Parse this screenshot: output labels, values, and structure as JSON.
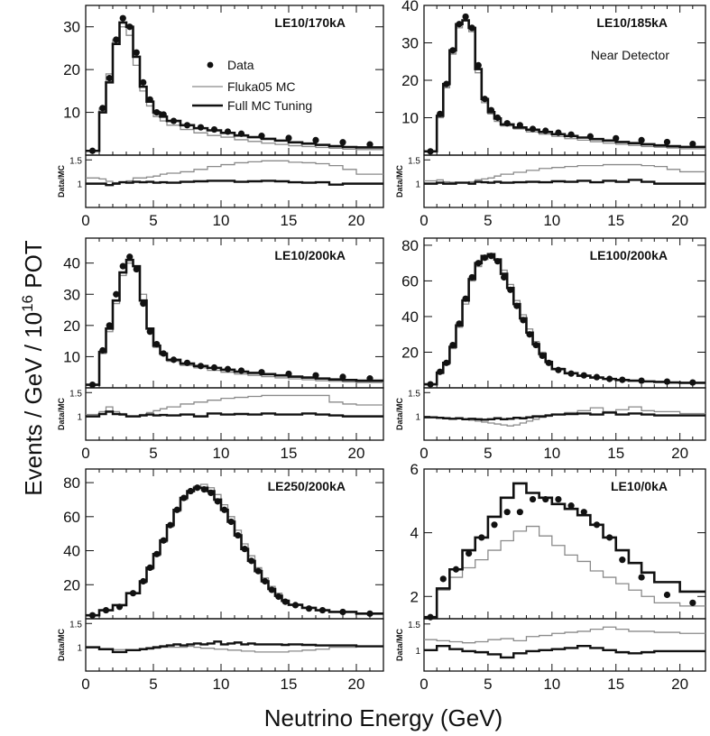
{
  "figure": {
    "y_axis_title": "Events / GeV / 10",
    "y_axis_exponent": "16",
    "y_axis_suffix": " POT",
    "x_axis_title": "Neutrino Energy (GeV)",
    "ratio_axis_label": "Data/MC"
  },
  "legend": {
    "data_label": "Data",
    "fluka_label": "Fluka05 MC",
    "tuned_label": "Full MC Tuning"
  },
  "colors": {
    "data": "#111111",
    "fluka": "#8a8a8a",
    "tuned": "#111111"
  },
  "chart_data": [
    {
      "type": "line",
      "panel": "LE10/170kA",
      "note": "",
      "xlim": [
        0,
        22
      ],
      "ylim": [
        0,
        35
      ],
      "yticks": [
        10,
        20,
        30
      ],
      "ratio_ylim": [
        0.5,
        1.6
      ],
      "ratio_yticks": [
        1,
        1.5
      ],
      "xticks": [
        0,
        5,
        10,
        15,
        20
      ],
      "bin_edges": [
        0,
        1,
        1.5,
        2,
        2.5,
        3,
        3.5,
        4,
        4.5,
        5,
        5.5,
        6,
        7,
        8,
        9,
        10,
        11,
        12,
        13,
        14,
        15,
        16,
        17,
        18,
        19,
        20,
        22
      ],
      "data": {
        "x": [
          0.5,
          1.25,
          1.75,
          2.25,
          2.75,
          3.25,
          3.75,
          4.25,
          4.75,
          5.25,
          5.75,
          6.5,
          7.5,
          8.5,
          9.5,
          10.5,
          11.5,
          13,
          15,
          17,
          19,
          21
        ],
        "y": [
          1,
          11,
          18,
          27,
          32,
          30,
          24,
          17,
          13,
          10,
          9.5,
          8,
          7,
          6.5,
          6,
          5.5,
          5,
          4.5,
          4,
          3.5,
          3,
          2.5
        ]
      },
      "fluka": [
        1,
        11,
        19,
        27,
        30,
        28,
        21,
        15,
        11.5,
        9,
        8,
        7,
        6,
        5.2,
        4.6,
        4.2,
        3.6,
        3.2,
        2.8,
        2.5,
        2.2,
        2,
        1.8,
        1.6,
        1.4,
        1.3
      ],
      "tuned": [
        1,
        10,
        17,
        26,
        31,
        30,
        23,
        16,
        12.5,
        10,
        9,
        8,
        7,
        6.3,
        5.8,
        5.2,
        4.6,
        4.2,
        3.8,
        3.4,
        3,
        2.7,
        2.4,
        2.1,
        1.9,
        1.8
      ],
      "ratio_fluka": [
        1.12,
        1.1,
        1.05,
        1.02,
        1.04,
        1.06,
        1.12,
        1.12,
        1.14,
        1.16,
        1.2,
        1.22,
        1.25,
        1.3,
        1.36,
        1.4,
        1.44,
        1.46,
        1.48,
        1.48,
        1.45,
        1.44,
        1.42,
        1.38,
        1.3,
        1.2
      ],
      "ratio_tuned": [
        1,
        1.0,
        0.97,
        1.0,
        1.03,
        1.02,
        1.04,
        1.03,
        1.04,
        1.02,
        1.03,
        1.02,
        1.04,
        1.05,
        1.06,
        1.06,
        1.04,
        1.05,
        1.06,
        1.05,
        1.03,
        1.02,
        1.03,
        0.98,
        1.0,
        1.0
      ]
    },
    {
      "type": "line",
      "panel": "LE10/185kA",
      "note": "Near Detector",
      "xlim": [
        0,
        22
      ],
      "ylim": [
        0,
        40
      ],
      "yticks": [
        10,
        20,
        30,
        40
      ],
      "ratio_ylim": [
        0.5,
        1.6
      ],
      "ratio_yticks": [
        1,
        1.5
      ],
      "xticks": [
        0,
        5,
        10,
        15,
        20
      ],
      "bin_edges": [
        0,
        1,
        1.5,
        2,
        2.5,
        3,
        3.5,
        4,
        4.5,
        5,
        5.5,
        6,
        7,
        8,
        9,
        10,
        11,
        12,
        13,
        14,
        15,
        16,
        17,
        18,
        19,
        20,
        22
      ],
      "data": {
        "x": [
          0.5,
          1.25,
          1.75,
          2.25,
          2.75,
          3.25,
          3.75,
          4.25,
          4.75,
          5.25,
          5.75,
          6.5,
          7.5,
          8.5,
          9.5,
          10.5,
          11.5,
          13,
          15,
          17,
          19,
          21
        ],
        "y": [
          1,
          11,
          19,
          28,
          35,
          37,
          34,
          24,
          15,
          12,
          10,
          8.5,
          8,
          7,
          6.5,
          6,
          5.5,
          5,
          4.5,
          4,
          3.5,
          3
        ]
      },
      "fluka": [
        1,
        10,
        18,
        27,
        34,
        36,
        33,
        22,
        14,
        11,
        9,
        7.8,
        7,
        6.2,
        5.6,
        5,
        4.4,
        4,
        3.6,
        3.2,
        2.9,
        2.6,
        2.3,
        2.1,
        1.9,
        1.7
      ],
      "tuned": [
        1,
        10.5,
        19,
        28,
        35,
        36,
        34,
        23,
        15,
        11.5,
        9.8,
        8.2,
        7.4,
        6.8,
        6.2,
        5.6,
        5.1,
        4.7,
        4.3,
        3.9,
        3.5,
        3.2,
        2.9,
        2.6,
        2.4,
        2.2
      ],
      "ratio_fluka": [
        1.06,
        1.08,
        1.04,
        1.03,
        1.02,
        1.02,
        1.04,
        1.08,
        1.1,
        1.12,
        1.16,
        1.2,
        1.24,
        1.28,
        1.32,
        1.34,
        1.36,
        1.38,
        1.38,
        1.4,
        1.4,
        1.4,
        1.38,
        1.36,
        1.3,
        1.25
      ],
      "ratio_tuned": [
        1,
        1.02,
        1.0,
        1.0,
        1.02,
        1.02,
        1.0,
        1.04,
        1.03,
        1.02,
        1.04,
        1.02,
        1.03,
        1.04,
        1.03,
        1.05,
        1.04,
        1.06,
        1.03,
        1.06,
        1.04,
        1.08,
        1.04,
        1.0,
        1.0,
        1.0
      ]
    },
    {
      "type": "line",
      "panel": "LE10/200kA",
      "note": "",
      "xlim": [
        0,
        22
      ],
      "ylim": [
        0,
        48
      ],
      "yticks": [
        10,
        20,
        30,
        40
      ],
      "ratio_ylim": [
        0.5,
        1.6
      ],
      "ratio_yticks": [
        1,
        1.5
      ],
      "xticks": [
        0,
        5,
        10,
        15,
        20
      ],
      "bin_edges": [
        0,
        1,
        1.5,
        2,
        2.5,
        3,
        3.5,
        4,
        4.5,
        5,
        5.5,
        6,
        7,
        8,
        9,
        10,
        11,
        12,
        13,
        14,
        15,
        16,
        17,
        18,
        19,
        20,
        22
      ],
      "data": {
        "x": [
          0.5,
          1.25,
          1.75,
          2.25,
          2.75,
          3.25,
          3.75,
          4.25,
          4.75,
          5.25,
          5.75,
          6.5,
          7.5,
          8.5,
          9.5,
          10.5,
          11.5,
          13,
          15,
          17,
          19,
          21
        ],
        "y": [
          1,
          12,
          20,
          30,
          39,
          42,
          38,
          27,
          18,
          14,
          11,
          9,
          8,
          7,
          6.5,
          6,
          5.5,
          5,
          4.5,
          4,
          3.5,
          3
        ]
      },
      "fluka": [
        1,
        11,
        18,
        27,
        36,
        40,
        39,
        30,
        19,
        13,
        10.5,
        8.5,
        7.2,
        6.4,
        5.6,
        5,
        4.4,
        4,
        3.6,
        3.2,
        2.9,
        2.6,
        2.3,
        2.1,
        1.9,
        1.7
      ],
      "tuned": [
        1,
        11.5,
        19,
        28,
        37,
        41,
        39,
        28,
        19,
        13.5,
        11,
        9,
        7.8,
        7,
        6.4,
        5.8,
        5.2,
        4.8,
        4.4,
        4,
        3.6,
        3.3,
        3,
        2.7,
        2.5,
        2.3
      ],
      "ratio_fluka": [
        1.04,
        1.1,
        1.2,
        1.1,
        1.06,
        1.0,
        1.0,
        1.04,
        1.08,
        1.12,
        1.16,
        1.2,
        1.26,
        1.3,
        1.34,
        1.38,
        1.4,
        1.42,
        1.44,
        1.44,
        1.44,
        1.44,
        1.44,
        1.3,
        1.26,
        1.24
      ],
      "ratio_tuned": [
        1,
        1.05,
        1.1,
        1.05,
        1.04,
        1.0,
        1.0,
        1.02,
        1.04,
        1.02,
        1.03,
        1.02,
        1.04,
        1.0,
        1.06,
        1.04,
        1.05,
        1.04,
        1.06,
        1.04,
        1.04,
        1.06,
        1.04,
        1.02,
        1.0,
        1.0
      ]
    },
    {
      "type": "line",
      "panel": "LE100/200kA",
      "note": "",
      "xlim": [
        0,
        22
      ],
      "ylim": [
        0,
        84
      ],
      "yticks": [
        20,
        40,
        60,
        80
      ],
      "ratio_ylim": [
        0.5,
        1.6
      ],
      "ratio_yticks": [
        1,
        1.5
      ],
      "xticks": [
        0,
        5,
        10,
        15,
        20
      ],
      "bin_edges": [
        0,
        1,
        1.5,
        2,
        2.5,
        3,
        3.5,
        4,
        4.5,
        5,
        5.5,
        6,
        6.5,
        7,
        7.5,
        8,
        8.5,
        9,
        9.5,
        10,
        11,
        12,
        13,
        14,
        15,
        16,
        17,
        18,
        19,
        20,
        22
      ],
      "data": {
        "x": [
          0.5,
          1.25,
          1.75,
          2.25,
          2.75,
          3.25,
          3.75,
          4.25,
          4.75,
          5.25,
          5.75,
          6.25,
          6.75,
          7.25,
          7.75,
          8.25,
          8.75,
          9.25,
          9.75,
          10.5,
          11.5,
          12.5,
          13.5,
          14.5,
          15.5,
          17,
          19,
          21
        ],
        "y": [
          2,
          9,
          14,
          24,
          36,
          50,
          62,
          70,
          73,
          74,
          71,
          62,
          55,
          46,
          38,
          30,
          24,
          18,
          14,
          10,
          8,
          7,
          6,
          5,
          4.5,
          4,
          3.5,
          3
        ]
      },
      "fluka": [
        2,
        8,
        13,
        22,
        34,
        47,
        60,
        68,
        72,
        74,
        72,
        66,
        58,
        49,
        41,
        33,
        26,
        20,
        15,
        11,
        8.5,
        7,
        6,
        5,
        4.5,
        4,
        3.7,
        3.4,
        3.1,
        2.8
      ],
      "tuned": [
        2,
        8.5,
        14,
        23,
        35,
        49,
        61,
        70,
        74,
        75,
        72,
        64,
        56,
        47,
        39,
        31,
        24.5,
        19,
        14.5,
        10.5,
        8.2,
        6.8,
        5.8,
        5,
        4.4,
        4,
        3.6,
        3.3,
        3,
        2.8
      ],
      "ratio_fluka": [
        0.98,
        0.98,
        0.97,
        0.96,
        0.95,
        0.94,
        0.92,
        0.9,
        0.88,
        0.86,
        0.84,
        0.82,
        0.8,
        0.82,
        0.86,
        0.9,
        0.94,
        0.98,
        1.0,
        1.04,
        1.08,
        1.12,
        1.18,
        1.1,
        1.14,
        1.2,
        1.12,
        1.1,
        1.1,
        1.06
      ],
      "ratio_tuned": [
        0.98,
        0.97,
        0.96,
        0.95,
        0.96,
        0.94,
        0.95,
        0.94,
        0.93,
        0.94,
        0.96,
        0.94,
        0.95,
        0.97,
        0.96,
        0.98,
        1.0,
        1.0,
        1.02,
        1.04,
        1.05,
        1.06,
        1.04,
        1.08,
        1.04,
        1.06,
        1.04,
        1.02,
        1.02,
        1.02
      ]
    },
    {
      "type": "line",
      "panel": "LE250/200kA",
      "note": "",
      "xlim": [
        0,
        22
      ],
      "ylim": [
        0,
        88
      ],
      "yticks": [
        20,
        40,
        60,
        80
      ],
      "ratio_ylim": [
        0.5,
        1.6
      ],
      "ratio_yticks": [
        1,
        1.5
      ],
      "xticks": [
        0,
        5,
        10,
        15,
        20
      ],
      "bin_edges": [
        0,
        1,
        2,
        3,
        4,
        4.5,
        5,
        5.5,
        6,
        6.5,
        7,
        7.5,
        8,
        8.5,
        9,
        9.5,
        10,
        10.5,
        11,
        11.5,
        12,
        12.5,
        13,
        13.5,
        14,
        14.5,
        15,
        16,
        17,
        18,
        20,
        22
      ],
      "data": {
        "x": [
          0.5,
          1.5,
          2.5,
          3.5,
          4.25,
          4.75,
          5.25,
          5.75,
          6.25,
          6.75,
          7.25,
          7.75,
          8.25,
          8.75,
          9.25,
          9.75,
          10.25,
          10.75,
          11.25,
          11.75,
          12.25,
          12.75,
          13.25,
          13.75,
          14.25,
          14.75,
          15.5,
          16.5,
          17.5,
          19,
          21
        ],
        "y": [
          2,
          5,
          7,
          15,
          22,
          30,
          38,
          46,
          55,
          64,
          71,
          75,
          77,
          76,
          74,
          69,
          64,
          57,
          49,
          41,
          34,
          28,
          22,
          17,
          13,
          10,
          8,
          6,
          5,
          4,
          3
        ]
      },
      "fluka": [
        2,
        5,
        8,
        15,
        21,
        29,
        37,
        45,
        54,
        63,
        70,
        75,
        78,
        79,
        77,
        73,
        67,
        60,
        52,
        44,
        37,
        30,
        24,
        19,
        15,
        11,
        8.5,
        6.5,
        5,
        4,
        3
      ],
      "tuned": [
        2,
        5,
        8,
        15,
        22,
        30,
        38,
        46,
        55,
        64,
        71,
        75,
        77,
        77,
        75,
        70,
        64,
        57,
        49,
        41,
        34,
        28,
        22,
        17.5,
        13.5,
        10.5,
        8.2,
        6.4,
        5,
        4,
        3
      ],
      "ratio_fluka": [
        1.0,
        0.96,
        0.95,
        0.94,
        0.96,
        0.96,
        0.98,
        1.0,
        1.0,
        1.0,
        1.0,
        1.02,
        1.0,
        0.98,
        0.98,
        0.96,
        0.96,
        0.94,
        0.94,
        0.92,
        0.92,
        0.9,
        0.9,
        0.9,
        0.9,
        0.9,
        0.92,
        0.94,
        0.96,
        1.0,
        1.02
      ],
      "ratio_tuned": [
        1.0,
        0.96,
        0.9,
        0.94,
        0.96,
        0.98,
        1.0,
        1.02,
        1.04,
        1.06,
        1.04,
        1.06,
        1.08,
        1.06,
        1.08,
        1.12,
        1.06,
        1.08,
        1.1,
        1.06,
        1.08,
        1.06,
        1.06,
        1.06,
        1.06,
        1.05,
        1.06,
        1.05,
        1.04,
        1.04,
        1.02
      ]
    },
    {
      "type": "line",
      "panel": "LE10/0kA",
      "note": "",
      "xlim": [
        0,
        22
      ],
      "ylim": [
        1.3,
        6
      ],
      "yticks": [
        2,
        4,
        6
      ],
      "ratio_ylim": [
        0.6,
        1.6
      ],
      "ratio_yticks": [
        1,
        1.5
      ],
      "xticks": [
        0,
        5,
        10,
        15,
        20
      ],
      "bin_edges": [
        0,
        1,
        2,
        3,
        4,
        5,
        6,
        7,
        8,
        9,
        10,
        11,
        12,
        13,
        14,
        15,
        16,
        17,
        18,
        20,
        22
      ],
      "data": {
        "x": [
          0.5,
          1.5,
          2.5,
          3.5,
          4.5,
          5.5,
          6.5,
          7.5,
          8.5,
          9.5,
          10.5,
          11.5,
          12.5,
          13.5,
          14.5,
          15.5,
          17,
          19,
          21
        ],
        "y": [
          1.35,
          2.55,
          2.85,
          3.35,
          3.85,
          4.25,
          4.65,
          4.65,
          5.05,
          5.05,
          5.05,
          4.85,
          4.65,
          4.25,
          3.85,
          3.15,
          2.6,
          2.05,
          1.8
        ]
      },
      "fluka": [
        1.35,
        2.2,
        2.6,
        2.9,
        3.15,
        3.45,
        3.75,
        4.05,
        4.2,
        3.9,
        3.6,
        3.3,
        3.1,
        2.8,
        2.6,
        2.4,
        2.2,
        2.0,
        1.8,
        1.7
      ],
      "tuned": [
        1.35,
        2.25,
        2.85,
        3.45,
        3.85,
        4.5,
        5.1,
        5.55,
        5.25,
        5.1,
        4.9,
        4.75,
        4.55,
        4.25,
        3.85,
        3.45,
        3.05,
        2.75,
        2.45,
        2.15
      ],
      "ratio_fluka": [
        1.2,
        1.18,
        1.16,
        1.14,
        1.16,
        1.2,
        1.22,
        1.18,
        1.26,
        1.28,
        1.32,
        1.34,
        1.36,
        1.4,
        1.44,
        1.4,
        1.36,
        1.36,
        1.34,
        1.32
      ],
      "ratio_tuned": [
        1.0,
        1.08,
        1.02,
        0.98,
        0.96,
        0.92,
        0.86,
        0.94,
        0.98,
        1.0,
        1.02,
        1.04,
        1.08,
        1.04,
        1.0,
        0.96,
        0.94,
        0.96,
        0.98,
        0.98
      ]
    }
  ]
}
